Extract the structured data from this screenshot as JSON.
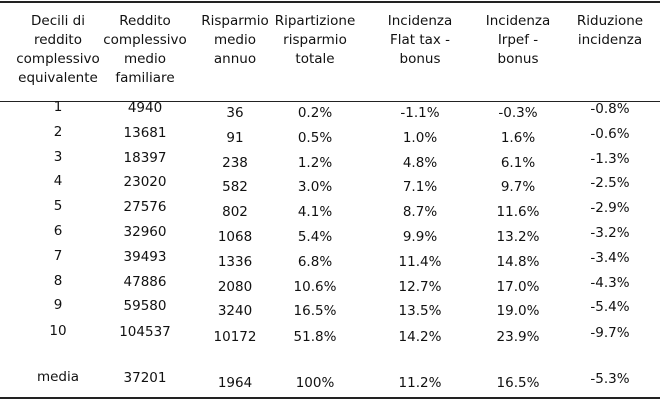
{
  "headers": [
    [
      "Decili di",
      "reddito",
      "complessivo",
      "equivalente"
    ],
    [
      "Reddito",
      "complessivo",
      "medio",
      "familiare"
    ],
    [
      "Risparmio",
      "medio",
      "annuo"
    ],
    [
      "Ripartizione",
      "risparmio",
      "totale"
    ],
    [
      "Incidenza",
      "Flat tax -",
      "bonus"
    ],
    [
      "Incidenza",
      "Irpef -",
      "bonus"
    ],
    [
      "Riduzione",
      "incidenza"
    ]
  ],
  "rows": [
    [
      "1",
      "4940",
      "36",
      "0.2%",
      "-1.1%",
      "-0.3%",
      "-0.8%"
    ],
    [
      "2",
      "13681",
      "91",
      "0.5%",
      "1.0%",
      "1.6%",
      "-0.6%"
    ],
    [
      "3",
      "18397",
      "238",
      "1.2%",
      "4.8%",
      "6.1%",
      "-1.3%"
    ],
    [
      "4",
      "23020",
      "582",
      "3.0%",
      "7.1%",
      "9.7%",
      "-2.5%"
    ],
    [
      "5",
      "27576",
      "802",
      "4.1%",
      "8.7%",
      "11.6%",
      "-2.9%"
    ],
    [
      "6",
      "32960",
      "1068",
      "5.4%",
      "9.9%",
      "13.2%",
      "-3.2%"
    ],
    [
      "7",
      "39493",
      "1336",
      "6.8%",
      "11.4%",
      "14.8%",
      "-3.4%"
    ],
    [
      "8",
      "47886",
      "2080",
      "10.6%",
      "12.7%",
      "17.0%",
      "-4.3%"
    ],
    [
      "9",
      "59580",
      "3240",
      "16.5%",
      "13.5%",
      "19.0%",
      "-5.4%"
    ],
    [
      "10",
      "104537",
      "10172",
      "51.8%",
      "14.2%",
      "23.9%",
      "-9.7%"
    ]
  ],
  "summary": [
    "media",
    "37201",
    "1964",
    "100%",
    "11.2%",
    "16.5%",
    "-5.3%"
  ]
}
